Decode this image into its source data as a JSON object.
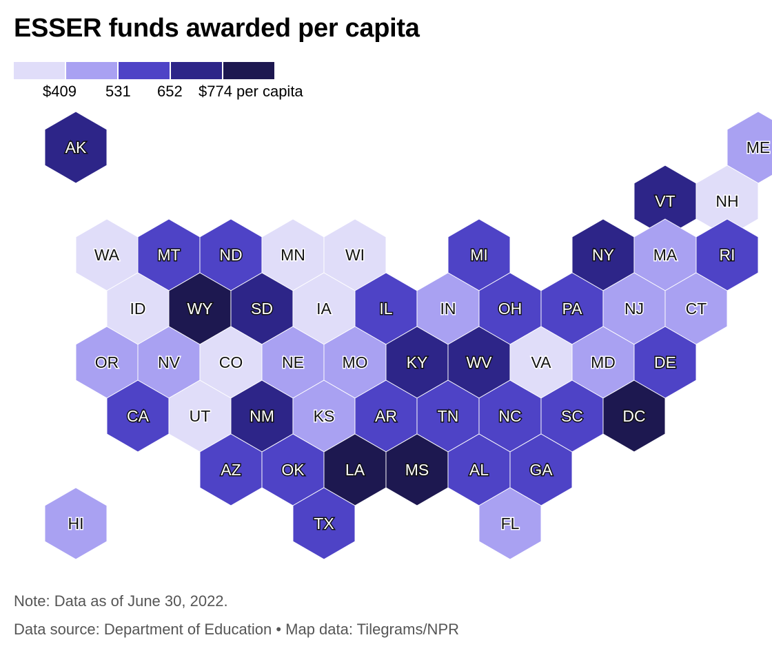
{
  "title": "ESSER funds awarded per capita",
  "legend": {
    "colors": [
      "#e0ddf9",
      "#a9a1f2",
      "#4e43c6",
      "#2d2588",
      "#1d1850"
    ],
    "labels": [
      "$409",
      "531",
      "652",
      "$774 per capita"
    ]
  },
  "map_data": {
    "type": "hex-tile-map",
    "states": [
      {
        "abbr": "AK",
        "row": 0,
        "col": 0.5,
        "bin": 3
      },
      {
        "abbr": "ME",
        "row": 0,
        "col": 11.5,
        "bin": 1
      },
      {
        "abbr": "VT",
        "row": 1,
        "col": 10,
        "bin": 3
      },
      {
        "abbr": "NH",
        "row": 1,
        "col": 11,
        "bin": 0
      },
      {
        "abbr": "WA",
        "row": 2,
        "col": 1,
        "bin": 0
      },
      {
        "abbr": "MT",
        "row": 2,
        "col": 2,
        "bin": 2
      },
      {
        "abbr": "ND",
        "row": 2,
        "col": 3,
        "bin": 2
      },
      {
        "abbr": "MN",
        "row": 2,
        "col": 4,
        "bin": 0
      },
      {
        "abbr": "WI",
        "row": 2,
        "col": 5,
        "bin": 0
      },
      {
        "abbr": "MI",
        "row": 2,
        "col": 7,
        "bin": 2
      },
      {
        "abbr": "NY",
        "row": 2,
        "col": 9,
        "bin": 3
      },
      {
        "abbr": "MA",
        "row": 2,
        "col": 10,
        "bin": 1
      },
      {
        "abbr": "RI",
        "row": 2,
        "col": 11,
        "bin": 2
      },
      {
        "abbr": "ID",
        "row": 3,
        "col": 1.5,
        "bin": 0
      },
      {
        "abbr": "WY",
        "row": 3,
        "col": 2.5,
        "bin": 4
      },
      {
        "abbr": "SD",
        "row": 3,
        "col": 3.5,
        "bin": 3
      },
      {
        "abbr": "IA",
        "row": 3,
        "col": 4.5,
        "bin": 0
      },
      {
        "abbr": "IL",
        "row": 3,
        "col": 5.5,
        "bin": 2
      },
      {
        "abbr": "IN",
        "row": 3,
        "col": 6.5,
        "bin": 1
      },
      {
        "abbr": "OH",
        "row": 3,
        "col": 7.5,
        "bin": 2
      },
      {
        "abbr": "PA",
        "row": 3,
        "col": 8.5,
        "bin": 2
      },
      {
        "abbr": "NJ",
        "row": 3,
        "col": 9.5,
        "bin": 1
      },
      {
        "abbr": "CT",
        "row": 3,
        "col": 10.5,
        "bin": 1
      },
      {
        "abbr": "OR",
        "row": 4,
        "col": 1,
        "bin": 1
      },
      {
        "abbr": "NV",
        "row": 4,
        "col": 2,
        "bin": 1
      },
      {
        "abbr": "CO",
        "row": 4,
        "col": 3,
        "bin": 0
      },
      {
        "abbr": "NE",
        "row": 4,
        "col": 4,
        "bin": 1
      },
      {
        "abbr": "MO",
        "row": 4,
        "col": 5,
        "bin": 1
      },
      {
        "abbr": "KY",
        "row": 4,
        "col": 6,
        "bin": 3
      },
      {
        "abbr": "WV",
        "row": 4,
        "col": 7,
        "bin": 3
      },
      {
        "abbr": "VA",
        "row": 4,
        "col": 8,
        "bin": 0
      },
      {
        "abbr": "MD",
        "row": 4,
        "col": 9,
        "bin": 1
      },
      {
        "abbr": "DE",
        "row": 4,
        "col": 10,
        "bin": 2
      },
      {
        "abbr": "CA",
        "row": 5,
        "col": 1.5,
        "bin": 2
      },
      {
        "abbr": "UT",
        "row": 5,
        "col": 2.5,
        "bin": 0
      },
      {
        "abbr": "NM",
        "row": 5,
        "col": 3.5,
        "bin": 3
      },
      {
        "abbr": "KS",
        "row": 5,
        "col": 4.5,
        "bin": 1
      },
      {
        "abbr": "AR",
        "row": 5,
        "col": 5.5,
        "bin": 2
      },
      {
        "abbr": "TN",
        "row": 5,
        "col": 6.5,
        "bin": 2
      },
      {
        "abbr": "NC",
        "row": 5,
        "col": 7.5,
        "bin": 2
      },
      {
        "abbr": "SC",
        "row": 5,
        "col": 8.5,
        "bin": 2
      },
      {
        "abbr": "DC",
        "row": 5,
        "col": 9.5,
        "bin": 4
      },
      {
        "abbr": "AZ",
        "row": 6,
        "col": 3,
        "bin": 2
      },
      {
        "abbr": "OK",
        "row": 6,
        "col": 4,
        "bin": 2
      },
      {
        "abbr": "LA",
        "row": 6,
        "col": 5,
        "bin": 4
      },
      {
        "abbr": "MS",
        "row": 6,
        "col": 6,
        "bin": 4
      },
      {
        "abbr": "AL",
        "row": 6,
        "col": 7,
        "bin": 2
      },
      {
        "abbr": "GA",
        "row": 6,
        "col": 8,
        "bin": 2
      },
      {
        "abbr": "HI",
        "row": 7,
        "col": 0.5,
        "bin": 1
      },
      {
        "abbr": "TX",
        "row": 7,
        "col": 4.5,
        "bin": 2
      },
      {
        "abbr": "FL",
        "row": 7,
        "col": 7.5,
        "bin": 1
      }
    ]
  },
  "footer": {
    "note": "Note: Data as of June 30, 2022.",
    "source": "Data source: Department of Education • Map data: Tilegrams/NPR"
  }
}
